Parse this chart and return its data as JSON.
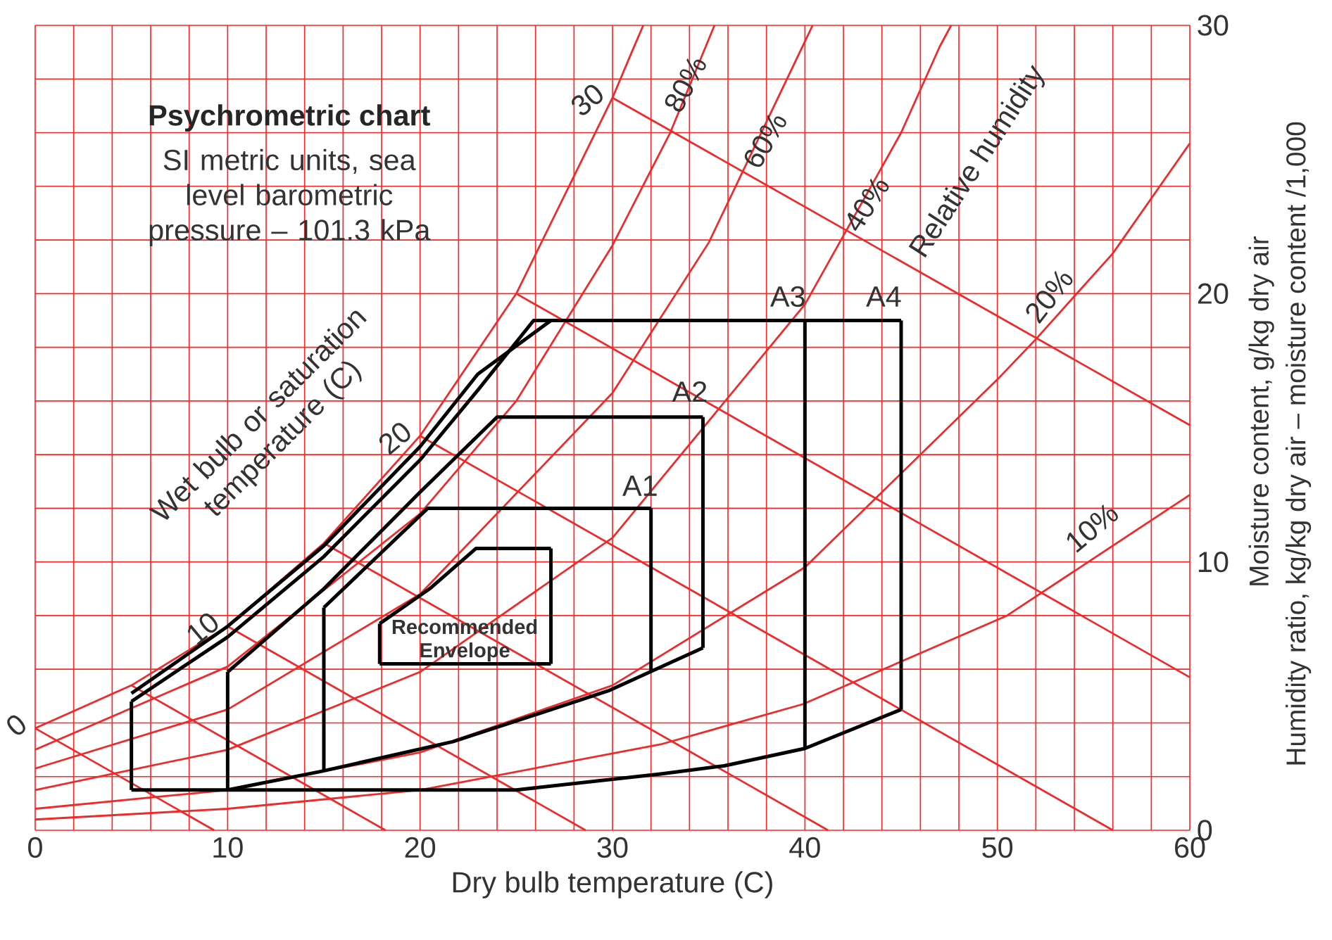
{
  "chart_data": {
    "type": "line",
    "title": "Psychrometric chart",
    "subtitle": "SI metric units, sea level barometric pressure – 101.3 kPa",
    "xlabel": "Dry bulb temperature (C)",
    "ylabel": "Moisture content, g/kg dry air",
    "xlim": [
      0,
      60
    ],
    "xticks": [
      0,
      10,
      20,
      30,
      40,
      50,
      60
    ],
    "ylim": [
      0,
      30
    ],
    "yticks": [
      0,
      10,
      20,
      30
    ],
    "grid": true,
    "marker": "none",
    "line_style": "solid",
    "series": [
      {
        "color": "#ee2a2a",
        "x": [
          0,
          5,
          10,
          15,
          20,
          25,
          30,
          31,
          31.6
        ],
        "values": [
          3.8,
          5.4,
          7.6,
          10.7,
          14.7,
          20.0,
          27.3,
          29.0,
          30
        ]
      },
      {
        "color": "#ee2a2a",
        "x": [
          0,
          10,
          20,
          25,
          30,
          33,
          35.3
        ],
        "values": [
          3.0,
          6.1,
          11.8,
          16.0,
          21.8,
          26.0,
          30
        ]
      },
      {
        "color": "#ee2a2a",
        "x": [
          0,
          10,
          20,
          30,
          35,
          40,
          40.4
        ],
        "values": [
          2.3,
          4.5,
          8.8,
          16.3,
          21.9,
          29.4,
          30
        ]
      },
      {
        "color": "#ee2a2a",
        "x": [
          0,
          10,
          20,
          30,
          40,
          45,
          47,
          47.6
        ],
        "values": [
          1.5,
          3.0,
          5.9,
          10.9,
          19.6,
          26.0,
          29.2,
          30
        ]
      },
      {
        "color": "#ee2a2a",
        "x": [
          0,
          10,
          20,
          30,
          40,
          50,
          52,
          56,
          60
        ],
        "values": [
          0.8,
          1.5,
          2.9,
          5.4,
          9.8,
          16.8,
          18.3,
          21.5,
          25.6
        ]
      },
      {
        "color": "#ee2a2a",
        "x": [
          0,
          10,
          20,
          32.5,
          39.9,
          50.5,
          60
        ],
        "values": [
          0.4,
          0.8,
          1.5,
          3.2,
          4.7,
          8.0,
          12.5
        ]
      },
      {
        "color": "#ee2a2a",
        "x": [
          0,
          9.3
        ],
        "values": [
          3.8,
          0
        ]
      },
      {
        "color": "#ee2a2a",
        "x": [
          5,
          18.2
        ],
        "values": [
          5.4,
          0
        ]
      },
      {
        "color": "#ee2a2a",
        "x": [
          10,
          28.6
        ],
        "values": [
          7.6,
          0
        ]
      },
      {
        "color": "#ee2a2a",
        "x": [
          15,
          41.2
        ],
        "values": [
          10.7,
          0
        ]
      },
      {
        "color": "#ee2a2a",
        "x": [
          20,
          56
        ],
        "values": [
          14.7,
          0
        ]
      },
      {
        "color": "#ee2a2a",
        "x": [
          25,
          60
        ],
        "values": [
          20.0,
          5.7
        ]
      },
      {
        "color": "#ee2a2a",
        "x": [
          30,
          60
        ],
        "values": [
          27.3,
          15.1
        ]
      },
      {
        "color": "#000000",
        "x": [
          5,
          5
        ],
        "values": [
          1.5,
          4.8
        ]
      },
      {
        "color": "#000000",
        "x": [
          5,
          10,
          15,
          20,
          23,
          25.9,
          45
        ],
        "values": [
          4.8,
          7.2,
          10.2,
          13.8,
          16.4,
          19,
          19
        ]
      },
      {
        "color": "#000000",
        "x": [
          45,
          45
        ],
        "values": [
          19,
          4.5
        ]
      },
      {
        "color": "#000000",
        "x": [
          5,
          25,
          32.5,
          35.8,
          40,
          45
        ],
        "values": [
          1.5,
          1.5,
          2.1,
          2.4,
          3.05,
          4.5
        ]
      },
      {
        "color": "#000000",
        "x": [
          5,
          10,
          15,
          20,
          23,
          26.8
        ],
        "values": [
          5.1,
          7.6,
          10.6,
          14.3,
          17.0,
          19
        ]
      },
      {
        "color": "#000000",
        "x": [
          40,
          40
        ],
        "values": [
          19,
          3.05
        ]
      },
      {
        "color": "#000000",
        "x": [
          10,
          10
        ],
        "values": [
          1.5,
          5.9
        ]
      },
      {
        "color": "#000000",
        "x": [
          10,
          15,
          20,
          24,
          34.7
        ],
        "values": [
          5.9,
          9.0,
          12.6,
          15.4,
          15.4
        ]
      },
      {
        "color": "#000000",
        "x": [
          34.7,
          34.7
        ],
        "values": [
          15.4,
          6.8
        ]
      },
      {
        "color": "#000000",
        "x": [
          10,
          14.9,
          21.7,
          29.8,
          34.7
        ],
        "values": [
          1.5,
          2.2,
          3.3,
          5.2,
          6.8
        ]
      },
      {
        "color": "#000000",
        "x": [
          15,
          15
        ],
        "values": [
          2.2,
          8.3
        ]
      },
      {
        "color": "#000000",
        "x": [
          15,
          20.4,
          32
        ],
        "values": [
          8.3,
          12.0,
          12.0
        ]
      },
      {
        "color": "#000000",
        "x": [
          32,
          32
        ],
        "values": [
          12.0,
          5.9
        ]
      },
      {
        "color": "#000000",
        "x": [
          17.9,
          17.9
        ],
        "values": [
          6.2,
          7.7
        ]
      },
      {
        "color": "#000000",
        "x": [
          17.9,
          20.5,
          22.9,
          26.8
        ],
        "values": [
          7.7,
          9.0,
          10.5,
          10.5
        ]
      },
      {
        "color": "#000000",
        "x": [
          26.8,
          26.8
        ],
        "values": [
          10.5,
          6.2
        ]
      },
      {
        "color": "#000000",
        "x": [
          17.9,
          26.8
        ],
        "values": [
          6.2,
          6.2
        ]
      }
    ],
    "annotations": [
      {
        "text": "0",
        "x": 0,
        "y": 3.8
      },
      {
        "text": "10",
        "x": 10,
        "y": 7.6
      },
      {
        "text": "20",
        "x": 20,
        "y": 14.7
      },
      {
        "text": "30",
        "x": 30,
        "y": 27.3
      },
      "80%",
      "60%",
      "40%",
      "Relative humidity",
      "20%",
      "10%",
      "A1",
      "A2",
      "A3",
      "A4",
      "Recommended Envelope",
      "Wet bulb or saturation temperature (C)",
      "Humidity ratio, kg/kg dry air – moisture content /1,000"
    ]
  }
}
